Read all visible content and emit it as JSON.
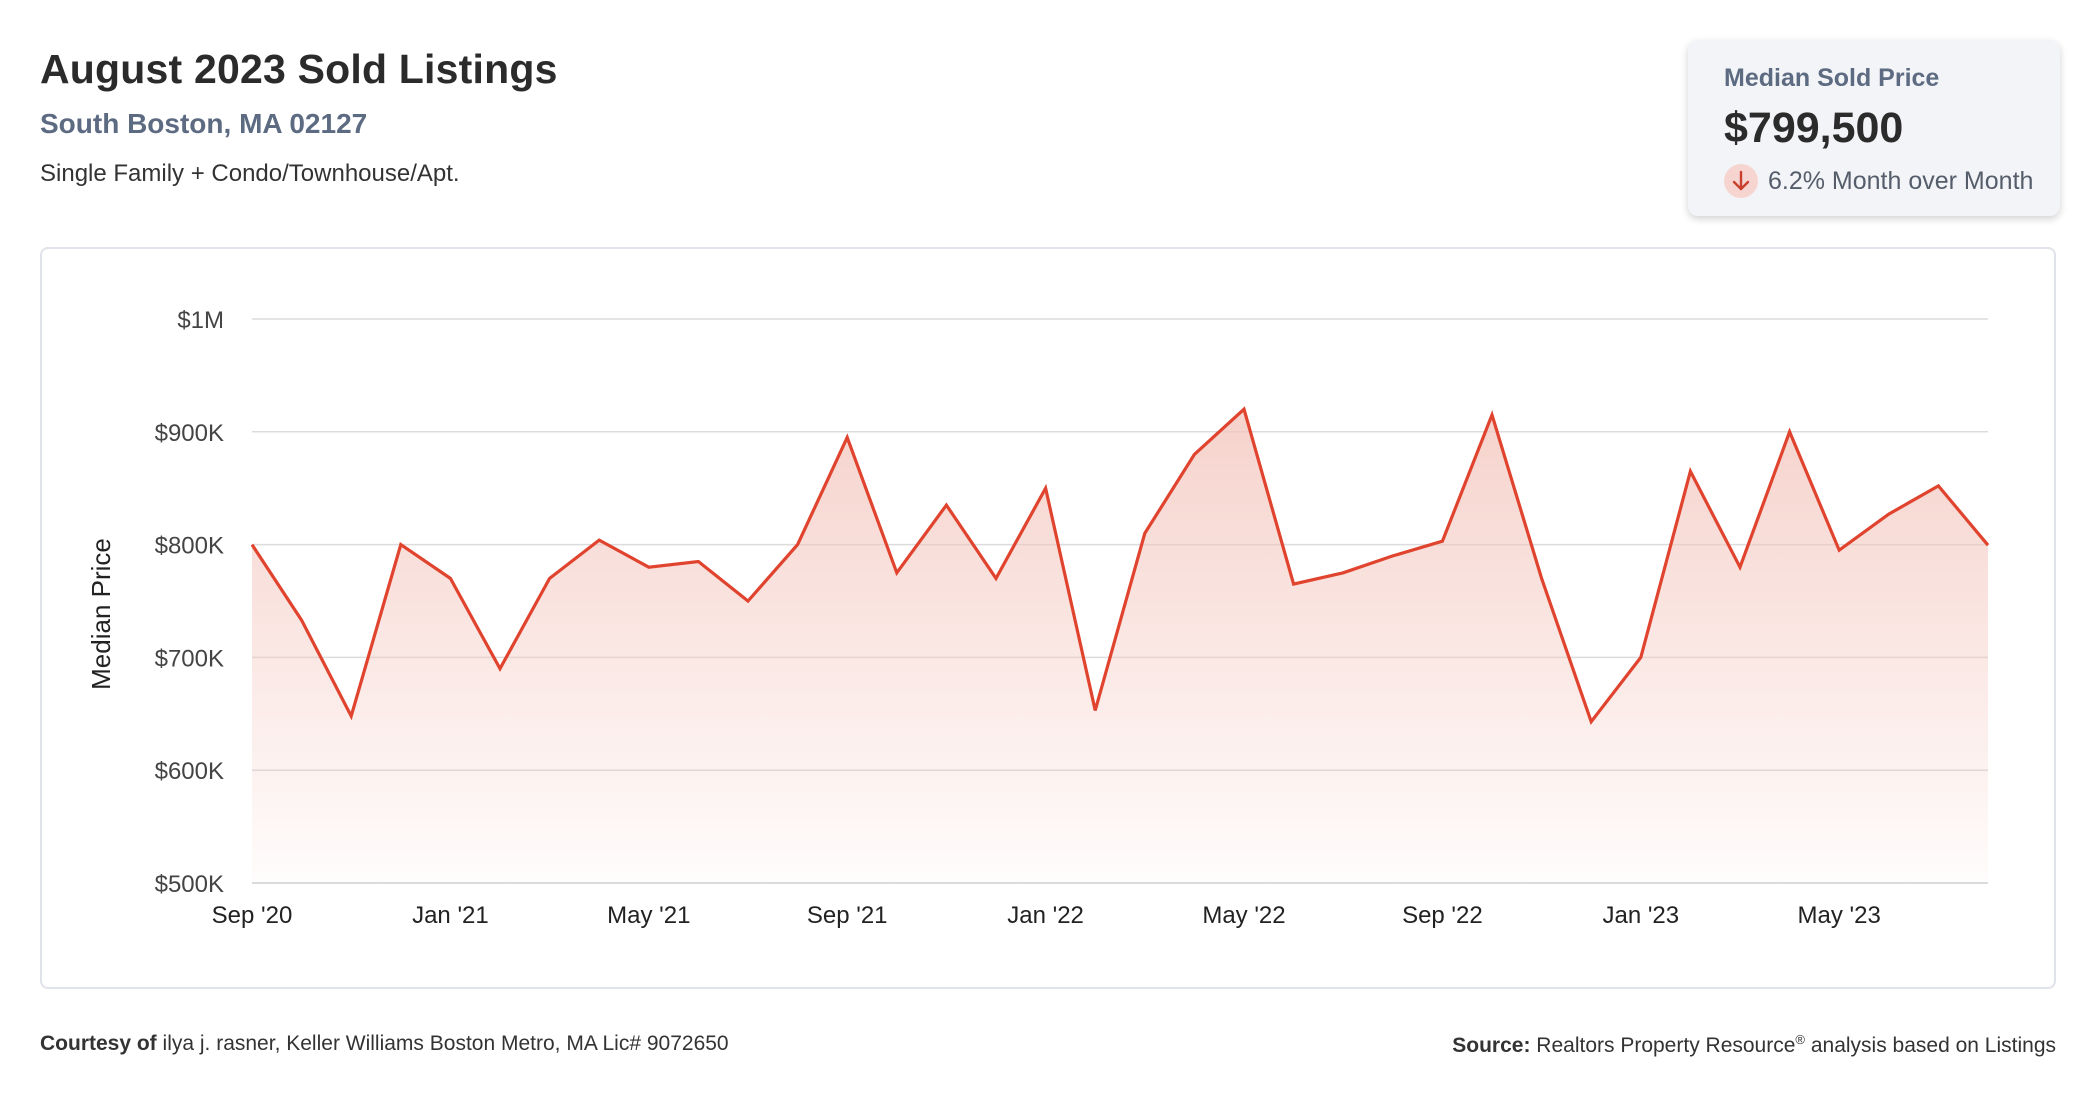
{
  "header": {
    "title": "August 2023 Sold Listings",
    "location": "South Boston, MA 02127",
    "property_types": "Single Family + Condo/Townhouse/Apt."
  },
  "stat_card": {
    "label": "Median Sold Price",
    "value": "$799,500",
    "change": "6.2% Month over Month",
    "change_direction": "down",
    "change_icon": "arrow-down-icon"
  },
  "colors": {
    "line": "#e0432e",
    "area": "#f4c7bf",
    "grid": "#dcdcdc",
    "text": "#333333"
  },
  "chart_data": {
    "type": "area",
    "ylabel": "Median Price",
    "xlabel": "",
    "ylim": [
      500000,
      1000000
    ],
    "y_ticks": [
      500000,
      600000,
      700000,
      800000,
      900000,
      1000000
    ],
    "y_tick_labels": [
      "$500K",
      "$600K",
      "$700K",
      "$800K",
      "$900K",
      "$1M"
    ],
    "x_tick_labels": [
      "Sep '20",
      "Jan '21",
      "May '21",
      "Sep '21",
      "Jan '22",
      "May '22",
      "Sep '22",
      "Jan '23",
      "May '23"
    ],
    "grid": true,
    "x": [
      "Sep '20",
      "Oct '20",
      "Nov '20",
      "Dec '20",
      "Jan '21",
      "Feb '21",
      "Mar '21",
      "Apr '21",
      "May '21",
      "Jun '21",
      "Jul '21",
      "Aug '21",
      "Sep '21",
      "Oct '21",
      "Nov '21",
      "Dec '21",
      "Jan '22",
      "Feb '22",
      "Mar '22",
      "Apr '22",
      "May '22",
      "Jun '22",
      "Jul '22",
      "Aug '22",
      "Sep '22",
      "Oct '22",
      "Nov '22",
      "Dec '22",
      "Jan '23",
      "Feb '23",
      "Mar '23",
      "Apr '23",
      "May '23",
      "Jun '23",
      "Jul '23",
      "Aug '23"
    ],
    "series": [
      {
        "values": [
          800000,
          733000,
          648000,
          800000,
          770000,
          690000,
          770000,
          804000,
          780000,
          785000,
          750000,
          800000,
          895000,
          775000,
          835000,
          770000,
          850000,
          653000,
          810000,
          880000,
          920000,
          765000,
          775000,
          790000,
          803000,
          915000,
          770000,
          643000,
          700000,
          865000,
          780000,
          900000,
          795000,
          827000,
          852000,
          799500
        ]
      }
    ]
  },
  "footer": {
    "courtesy_label": "Courtesy of",
    "courtesy_text": "ilya j. rasner, Keller Williams Boston Metro, MA Lic# 9072650",
    "source_label": "Source:",
    "source_text_1": "Realtors Property Resource",
    "source_sup": "®",
    "source_text_2": "analysis based on Listings"
  }
}
